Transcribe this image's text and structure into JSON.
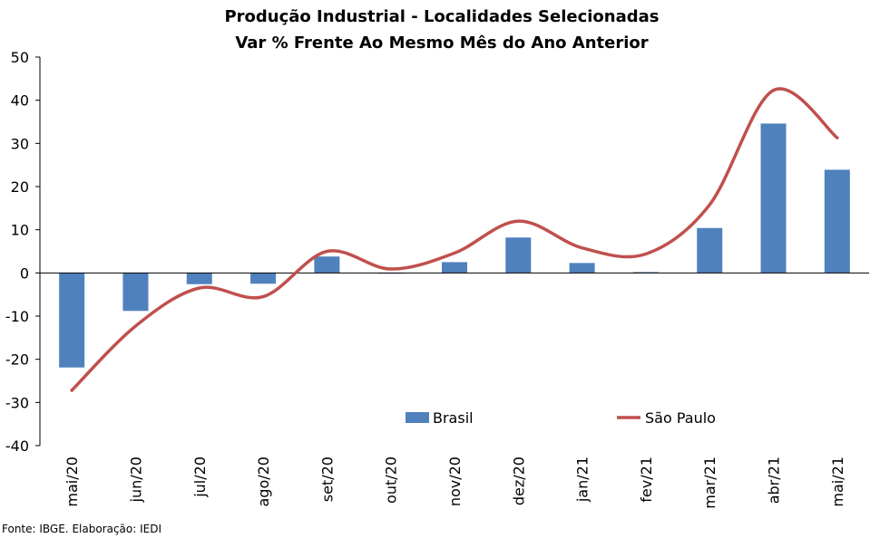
{
  "chart_data": {
    "type": "bar",
    "title": "Produção Industrial - Localidades Selecionadas",
    "subtitle": "Var % Frente Ao Mesmo Mês do Ano Anterior",
    "categories": [
      "mai/20",
      "jun/20",
      "jul/20",
      "ago/20",
      "set/20",
      "out/20",
      "nov/20",
      "dez/20",
      "jan/21",
      "fev/21",
      "mar/21",
      "abr/21",
      "mai/21"
    ],
    "series": [
      {
        "name": "Brasil",
        "type": "bar",
        "color": "#4f81bd",
        "values": [
          -21.9,
          -8.8,
          -2.6,
          -2.5,
          3.8,
          0.0,
          2.5,
          8.2,
          2.3,
          0.2,
          10.4,
          34.6,
          23.9
        ]
      },
      {
        "name": "São Paulo",
        "type": "line",
        "color": "#c0504d",
        "values": [
          -27.2,
          -12.3,
          -3.5,
          -5.5,
          5.0,
          0.9,
          4.6,
          12.0,
          5.8,
          4.4,
          15.8,
          42.3,
          31.3
        ]
      }
    ],
    "yticks": [
      -40,
      -30,
      -20,
      -10,
      0,
      10,
      20,
      30,
      40,
      50
    ],
    "ylim": [
      -40,
      50
    ],
    "grid": false,
    "legend_position": "inside-bottom"
  },
  "source_note": "Fonte: IBGE. Elaboração: IEDI"
}
